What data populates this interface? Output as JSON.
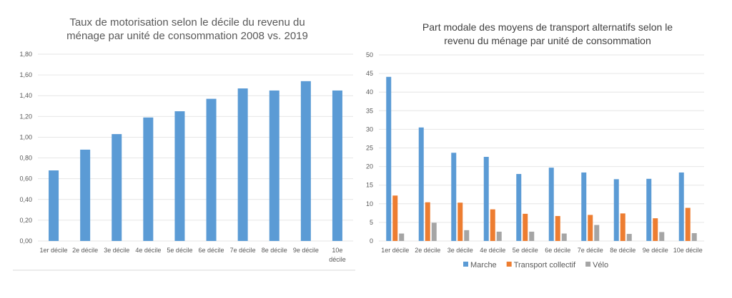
{
  "chart_data": [
    {
      "type": "bar",
      "title": [
        "Taux de motorisation selon le décile du revenu du",
        "ménage par unité de consommation 2008 vs. 2019"
      ],
      "categories": [
        "1er décile",
        "2e décile",
        "3e décile",
        "4e décile",
        "5e décile",
        "6e décile",
        "7e décile",
        "8e décile",
        "9e décile",
        "10e décile"
      ],
      "values": [
        0.68,
        0.88,
        1.03,
        1.19,
        1.25,
        1.37,
        1.47,
        1.45,
        1.54,
        1.45
      ],
      "yticks": [
        "0,00",
        "0,20",
        "0,40",
        "0,60",
        "0,80",
        "1,00",
        "1,20",
        "1,40",
        "1,60",
        "1,80"
      ],
      "ylim": [
        0,
        1.8
      ],
      "grid": true,
      "color": "#5b9bd5"
    },
    {
      "type": "bar",
      "title": [
        "Part modale des moyens de transport alternatifs selon le",
        "revenu du ménage par unité de consommation"
      ],
      "categories": [
        "1er décile",
        "2e décile",
        "3e décile",
        "4e décile",
        "5e décile",
        "6e décile",
        "7e décile",
        "8e décile",
        "9e décile",
        "10e décile"
      ],
      "series": [
        {
          "name": "Marche",
          "color": "#5b9bd5",
          "values": [
            44.1,
            30.5,
            23.7,
            22.6,
            18.0,
            19.7,
            18.4,
            16.6,
            16.7,
            18.4
          ]
        },
        {
          "name": "Transport collectif",
          "color": "#ed7d31",
          "values": [
            12.2,
            10.4,
            10.3,
            8.5,
            7.3,
            6.7,
            7.0,
            7.4,
            6.1,
            8.9
          ]
        },
        {
          "name": "Vélo",
          "color": "#a5a5a5",
          "values": [
            2.0,
            4.9,
            2.9,
            2.5,
            2.5,
            2.0,
            4.3,
            1.9,
            2.4,
            2.1
          ]
        }
      ],
      "yticks": [
        "0",
        "5",
        "10",
        "15",
        "20",
        "25",
        "30",
        "35",
        "40",
        "45",
        "50"
      ],
      "ylim": [
        0,
        50
      ],
      "grid": true,
      "legend": "bottom"
    }
  ]
}
